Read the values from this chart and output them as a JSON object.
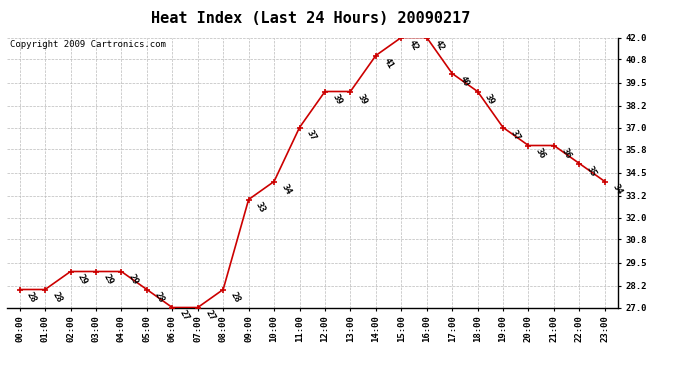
{
  "title": "Heat Index (Last 24 Hours) 20090217",
  "copyright": "Copyright 2009 Cartronics.com",
  "hours": [
    "00:00",
    "01:00",
    "02:00",
    "03:00",
    "04:00",
    "05:00",
    "06:00",
    "07:00",
    "08:00",
    "09:00",
    "10:00",
    "11:00",
    "12:00",
    "13:00",
    "14:00",
    "15:00",
    "16:00",
    "17:00",
    "18:00",
    "19:00",
    "20:00",
    "21:00",
    "22:00",
    "23:00"
  ],
  "values": [
    28,
    28,
    29,
    29,
    29,
    28,
    27,
    27,
    28,
    33,
    34,
    37,
    39,
    39,
    41,
    42,
    42,
    40,
    39,
    37,
    36,
    36,
    35,
    34
  ],
  "ylim_min": 27.0,
  "ylim_max": 42.0,
  "yticks": [
    27.0,
    28.2,
    29.5,
    30.8,
    32.0,
    33.2,
    34.5,
    35.8,
    37.0,
    38.2,
    39.5,
    40.8,
    42.0
  ],
  "line_color": "#cc0000",
  "marker_color": "#cc0000",
  "bg_color": "#ffffff",
  "plot_bg_color": "#ffffff",
  "grid_color": "#bbbbbb",
  "title_fontsize": 11,
  "label_fontsize": 6.5,
  "tick_fontsize": 6.5,
  "copyright_fontsize": 6.5
}
